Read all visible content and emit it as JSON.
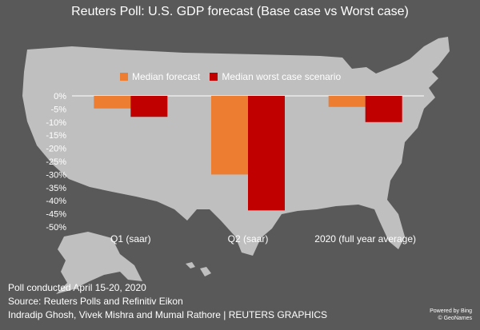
{
  "title": "Reuters Poll: U.S. GDP forecast (Base case vs Worst case)",
  "footer": {
    "line1": "Poll conducted April 15-20, 2020",
    "line2": "Source: Reuters Polls and Refinitiv Eikon",
    "line3": "Indradip Ghosh, Vivek Mishra and Mumal Rathore | REUTERS GRAPHICS"
  },
  "credit": {
    "line1": "Powered by Bing",
    "line2": "© GeoNames"
  },
  "colors": {
    "background": "#595959",
    "map": "#bfbfbf",
    "median_forecast": "#ed7d31",
    "median_worst": "#c00000"
  },
  "chart_data": {
    "type": "bar",
    "categories": [
      "Q1 (saar)",
      "Q2 (saar)",
      "2020 (full year average)"
    ],
    "series": [
      {
        "name": "Median forecast",
        "color": "#ed7d31",
        "values": [
          -4.8,
          -30.0,
          -4.2
        ]
      },
      {
        "name": "Median worst case scenario",
        "color": "#c00000",
        "values": [
          -8.0,
          -43.7,
          -10.0
        ]
      }
    ],
    "ylim": [
      -50,
      0
    ],
    "yticks": [
      "0%",
      "-5%",
      "-10%",
      "-15%",
      "-20%",
      "-25%",
      "-30%",
      "-35%",
      "-40%",
      "-45%",
      "-50%"
    ],
    "ytick_values": [
      0,
      -5,
      -10,
      -15,
      -20,
      -25,
      -30,
      -35,
      -40,
      -45,
      -50
    ],
    "legend_position": "top",
    "grid": false
  }
}
